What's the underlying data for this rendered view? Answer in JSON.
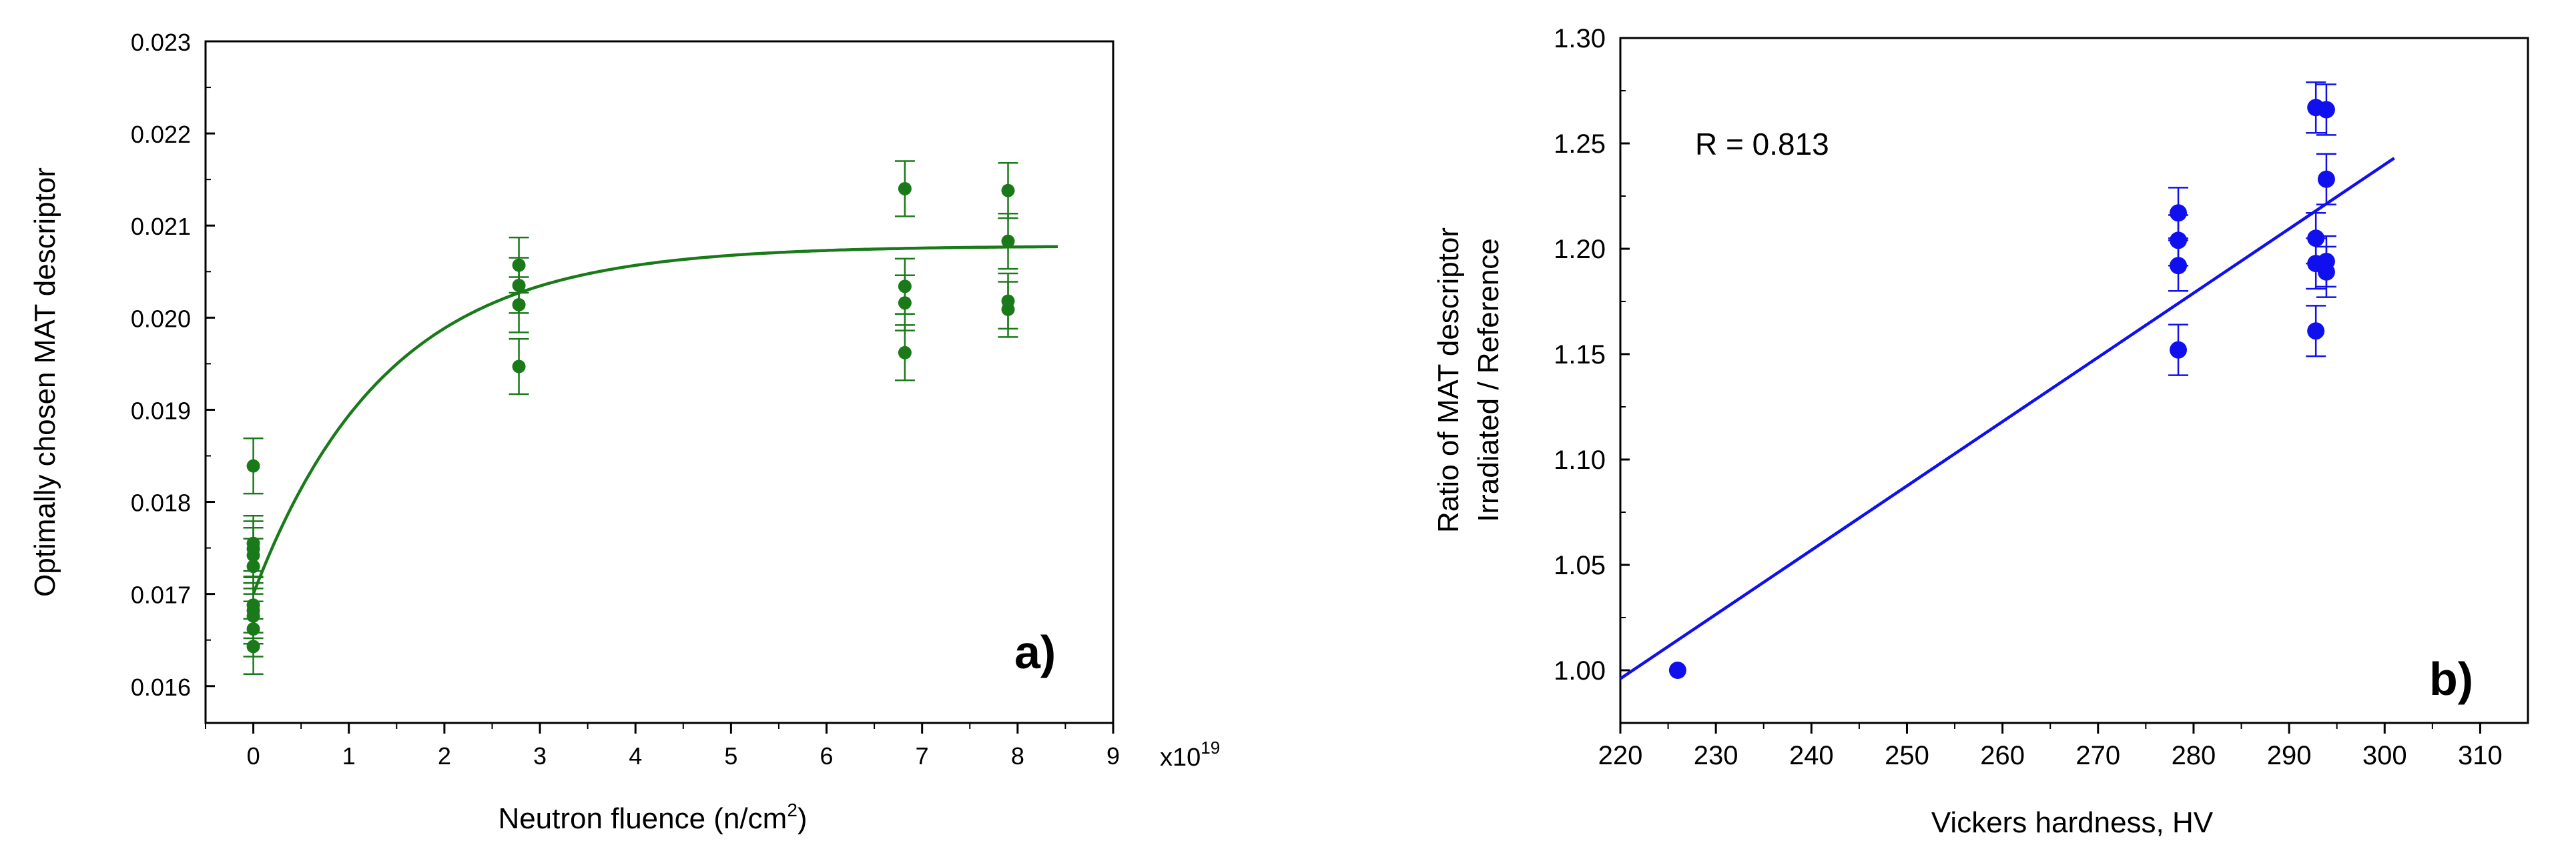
{
  "chart_data": [
    {
      "id": "a",
      "type": "scatter",
      "panel_label": "a)",
      "xlabel_prefix": "Neutron fluence  (n/cm",
      "xlabel_sup": "2",
      "xlabel_suffix": ")",
      "ylabel": "Optimally chosen MAT descriptor",
      "x_multiplier_base": "x10",
      "x_multiplier_exp": "19",
      "xlim": [
        -0.5,
        9
      ],
      "ylim": [
        0.0156,
        0.023
      ],
      "xticks": [
        0,
        1,
        2,
        3,
        4,
        5,
        6,
        7,
        8,
        9
      ],
      "yticks": [
        0.016,
        0.017,
        0.018,
        0.019,
        0.02,
        0.021,
        0.022,
        0.023
      ],
      "ytick_labels": [
        "0.016",
        "0.017",
        "0.018",
        "0.019",
        "0.020",
        "0.021",
        "0.022",
        "0.023"
      ],
      "color": "#1a7a1a",
      "points": [
        {
          "x": 0,
          "y": 0.01839,
          "err": 0.0003
        },
        {
          "x": 0,
          "y": 0.01755,
          "err": 0.0003
        },
        {
          "x": 0,
          "y": 0.01749,
          "err": 0.0003
        },
        {
          "x": 0,
          "y": 0.01742,
          "err": 0.0003
        },
        {
          "x": 0,
          "y": 0.0173,
          "err": 0.0003
        },
        {
          "x": 0,
          "y": 0.01688,
          "err": 0.0003
        },
        {
          "x": 0,
          "y": 0.01682,
          "err": 0.0003
        },
        {
          "x": 0,
          "y": 0.01676,
          "err": 0.0003
        },
        {
          "x": 0,
          "y": 0.01662,
          "err": 0.0003
        },
        {
          "x": 0,
          "y": 0.01643,
          "err": 0.0003
        },
        {
          "x": 2.78,
          "y": 0.02057,
          "err": 0.0003
        },
        {
          "x": 2.78,
          "y": 0.02035,
          "err": 0.0003
        },
        {
          "x": 2.78,
          "y": 0.02014,
          "err": 0.0003
        },
        {
          "x": 2.78,
          "y": 0.01947,
          "err": 0.0003
        },
        {
          "x": 6.82,
          "y": 0.0214,
          "err": 0.0003
        },
        {
          "x": 6.82,
          "y": 0.02034,
          "err": 0.0003
        },
        {
          "x": 6.82,
          "y": 0.02016,
          "err": 0.0003
        },
        {
          "x": 6.82,
          "y": 0.01962,
          "err": 0.0003
        },
        {
          "x": 7.9,
          "y": 0.02138,
          "err": 0.0003
        },
        {
          "x": 7.9,
          "y": 0.02083,
          "err": 0.0003
        },
        {
          "x": 7.9,
          "y": 0.02018,
          "err": 0.0003
        },
        {
          "x": 7.9,
          "y": 0.02009,
          "err": 0.0003
        }
      ],
      "fit": {
        "type": "exponential",
        "y0": 0.02078,
        "A": 0.00378,
        "k": 0.72,
        "x_range": [
          0,
          8.42
        ]
      }
    },
    {
      "id": "b",
      "type": "scatter",
      "panel_label": "b)",
      "xlabel": "Vickers hardness, HV",
      "ylabel_line1": "Ratio of MAT descriptor",
      "ylabel_line2": "Irradiated / Reference",
      "annotation": "R = 0.813",
      "xlim": [
        220,
        315
      ],
      "ylim": [
        0.975,
        1.3
      ],
      "xticks": [
        220,
        230,
        240,
        250,
        260,
        270,
        280,
        290,
        300,
        310
      ],
      "yticks": [
        1.0,
        1.05,
        1.1,
        1.15,
        1.2,
        1.25,
        1.3
      ],
      "ytick_labels": [
        "1.00",
        "1.05",
        "1.10",
        "1.15",
        "1.20",
        "1.25",
        "1.30"
      ],
      "color": "#1010ee",
      "points": [
        {
          "x": 226.0,
          "y": 1.0,
          "err": 0
        },
        {
          "x": 278.4,
          "y": 1.217,
          "err": 0.012
        },
        {
          "x": 278.4,
          "y": 1.204,
          "err": 0.012
        },
        {
          "x": 278.4,
          "y": 1.192,
          "err": 0.012
        },
        {
          "x": 278.4,
          "y": 1.152,
          "err": 0.012
        },
        {
          "x": 292.8,
          "y": 1.267,
          "err": 0.012
        },
        {
          "x": 292.8,
          "y": 1.205,
          "err": 0.012
        },
        {
          "x": 292.8,
          "y": 1.193,
          "err": 0.012
        },
        {
          "x": 292.8,
          "y": 1.161,
          "err": 0.012
        },
        {
          "x": 293.9,
          "y": 1.266,
          "err": 0.012
        },
        {
          "x": 293.9,
          "y": 1.233,
          "err": 0.012
        },
        {
          "x": 293.9,
          "y": 1.194,
          "err": 0.012
        },
        {
          "x": 293.9,
          "y": 1.189,
          "err": 0.012
        }
      ],
      "fit": {
        "type": "linear",
        "x1": 220,
        "y1": 0.996,
        "x2": 301,
        "y2": 1.243
      }
    }
  ]
}
